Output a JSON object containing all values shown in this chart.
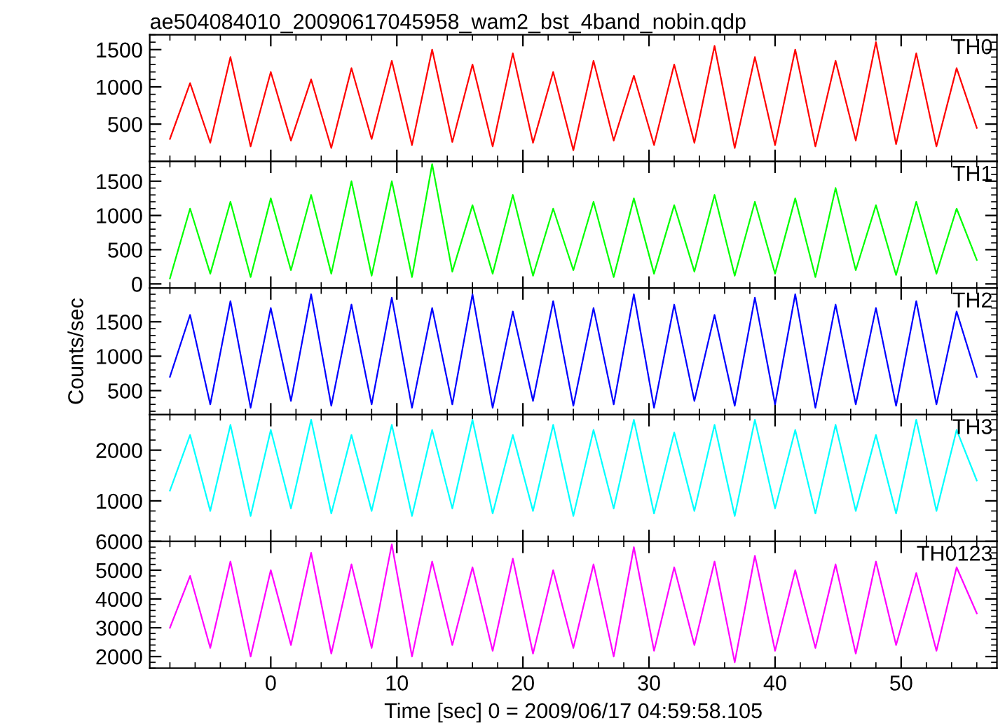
{
  "chart_data": [
    {
      "type": "line",
      "title": "ae504084010_20090617045958_wam2_bst_4band_nobin.qdp",
      "tick_labels": "y",
      "xlim": [
        -9.6,
        57.6
      ],
      "xticks": [
        0,
        10,
        20,
        30,
        40,
        50
      ],
      "ylim": [
        0,
        1700
      ],
      "yticks": [
        500,
        1000,
        1500
      ],
      "x": [
        -8,
        -6.4,
        -4.8,
        -3.2,
        -1.6,
        0,
        1.6,
        3.2,
        4.8,
        6.4,
        8,
        9.6,
        11.2,
        12.8,
        14.4,
        16,
        17.6,
        19.2,
        20.8,
        22.4,
        24,
        25.6,
        27.2,
        28.8,
        30.4,
        32,
        33.6,
        35.2,
        36.8,
        38.4,
        40,
        41.6,
        43.2,
        44.8,
        46.4,
        48,
        49.6,
        51.2,
        52.8,
        54.4,
        56
      ],
      "series": [
        {
          "name": "TH0",
          "color": "#ff0000",
          "values": [
            300,
            1050,
            250,
            1400,
            200,
            1200,
            280,
            1100,
            180,
            1250,
            300,
            1350,
            220,
            1500,
            260,
            1300,
            200,
            1450,
            250,
            1200,
            150,
            1350,
            280,
            1150,
            220,
            1300,
            250,
            1550,
            180,
            1400,
            220,
            1500,
            200,
            1350,
            280,
            1600,
            230,
            1450,
            200,
            1250,
            450
          ]
        }
      ]
    },
    {
      "type": "line",
      "tick_labels": "y",
      "xlim": [
        -9.6,
        57.6
      ],
      "xticks": [
        0,
        10,
        20,
        30,
        40,
        50
      ],
      "ylim": [
        -60,
        1790
      ],
      "yticks": [
        0,
        500,
        1000,
        1500
      ],
      "x": [
        -8,
        -6.4,
        -4.8,
        -3.2,
        -1.6,
        0,
        1.6,
        3.2,
        4.8,
        6.4,
        8,
        9.6,
        11.2,
        12.8,
        14.4,
        16,
        17.6,
        19.2,
        20.8,
        22.4,
        24,
        25.6,
        27.2,
        28.8,
        30.4,
        32,
        33.6,
        35.2,
        36.8,
        38.4,
        40,
        41.6,
        43.2,
        44.8,
        46.4,
        48,
        49.6,
        51.2,
        52.8,
        54.4,
        56
      ],
      "series": [
        {
          "name": "TH1",
          "color": "#00ff00",
          "values": [
            80,
            1100,
            150,
            1200,
            100,
            1250,
            200,
            1300,
            150,
            1500,
            120,
            1500,
            100,
            1750,
            180,
            1150,
            150,
            1300,
            120,
            1100,
            200,
            1200,
            100,
            1250,
            150,
            1150,
            180,
            1300,
            120,
            1200,
            150,
            1250,
            100,
            1400,
            200,
            1150,
            130,
            1200,
            150,
            1100,
            350
          ]
        }
      ]
    },
    {
      "type": "line",
      "tick_labels": "y",
      "ylabel": "Counts/sec",
      "xlim": [
        -9.6,
        57.6
      ],
      "xticks": [
        0,
        10,
        20,
        30,
        40,
        50
      ],
      "ylim": [
        150,
        1990
      ],
      "yticks": [
        500,
        1000,
        1500
      ],
      "x": [
        -8,
        -6.4,
        -4.8,
        -3.2,
        -1.6,
        0,
        1.6,
        3.2,
        4.8,
        6.4,
        8,
        9.6,
        11.2,
        12.8,
        14.4,
        16,
        17.6,
        19.2,
        20.8,
        22.4,
        24,
        25.6,
        27.2,
        28.8,
        30.4,
        32,
        33.6,
        35.2,
        36.8,
        38.4,
        40,
        41.6,
        43.2,
        44.8,
        46.4,
        48,
        49.6,
        51.2,
        52.8,
        54.4,
        56
      ],
      "series": [
        {
          "name": "TH2",
          "color": "#0000ff",
          "values": [
            700,
            1600,
            300,
            1800,
            250,
            1700,
            350,
            1900,
            280,
            1750,
            300,
            1850,
            250,
            1700,
            300,
            1900,
            250,
            1650,
            350,
            1800,
            280,
            1700,
            300,
            1900,
            250,
            1750,
            350,
            1600,
            280,
            1850,
            300,
            1900,
            250,
            1750,
            300,
            1700,
            280,
            1800,
            300,
            1650,
            700
          ]
        }
      ]
    },
    {
      "type": "line",
      "tick_labels": "y",
      "xlim": [
        -9.6,
        57.6
      ],
      "xticks": [
        0,
        10,
        20,
        30,
        40,
        50
      ],
      "ylim": [
        200,
        2700
      ],
      "yticks": [
        1000,
        2000
      ],
      "x": [
        -8,
        -6.4,
        -4.8,
        -3.2,
        -1.6,
        0,
        1.6,
        3.2,
        4.8,
        6.4,
        8,
        9.6,
        11.2,
        12.8,
        14.4,
        16,
        17.6,
        19.2,
        20.8,
        22.4,
        24,
        25.6,
        27.2,
        28.8,
        30.4,
        32,
        33.6,
        35.2,
        36.8,
        38.4,
        40,
        41.6,
        43.2,
        44.8,
        46.4,
        48,
        49.6,
        51.2,
        52.8,
        54.4,
        56
      ],
      "series": [
        {
          "name": "TH3",
          "color": "#00ffff",
          "values": [
            1200,
            2300,
            800,
            2500,
            700,
            2400,
            850,
            2600,
            750,
            2300,
            800,
            2500,
            700,
            2400,
            850,
            2600,
            750,
            2300,
            800,
            2500,
            700,
            2400,
            850,
            2600,
            750,
            2350,
            800,
            2500,
            700,
            2600,
            850,
            2400,
            750,
            2500,
            800,
            2300,
            750,
            2600,
            800,
            2400,
            1400
          ]
        }
      ]
    },
    {
      "type": "line",
      "xlabel": "Time [sec] 0 = 2009/06/17 04:59:58.105",
      "xlim": [
        -9.6,
        57.6
      ],
      "xticks": [
        0,
        10,
        20,
        30,
        40,
        50
      ],
      "ylim": [
        1600,
        6000
      ],
      "yticks": [
        2000,
        3000,
        4000,
        5000,
        6000
      ],
      "x": [
        -8,
        -6.4,
        -4.8,
        -3.2,
        -1.6,
        0,
        1.6,
        3.2,
        4.8,
        6.4,
        8,
        9.6,
        11.2,
        12.8,
        14.4,
        16,
        17.6,
        19.2,
        20.8,
        22.4,
        24,
        25.6,
        27.2,
        28.8,
        30.4,
        32,
        33.6,
        35.2,
        36.8,
        38.4,
        40,
        41.6,
        43.2,
        44.8,
        46.4,
        48,
        49.6,
        51.2,
        52.8,
        54.4,
        56
      ],
      "series": [
        {
          "name": "TH0123",
          "color": "#ff00ff",
          "values": [
            3000,
            4800,
            2300,
            5300,
            2000,
            5000,
            2400,
            5600,
            2100,
            5200,
            2300,
            5900,
            2000,
            5300,
            2400,
            5100,
            2200,
            5400,
            2100,
            5000,
            2300,
            5200,
            2000,
            5800,
            2200,
            5100,
            2400,
            5300,
            1800,
            5500,
            2200,
            5000,
            2300,
            5200,
            2100,
            5300,
            2400,
            4900,
            2200,
            5100,
            3500
          ]
        }
      ]
    }
  ]
}
